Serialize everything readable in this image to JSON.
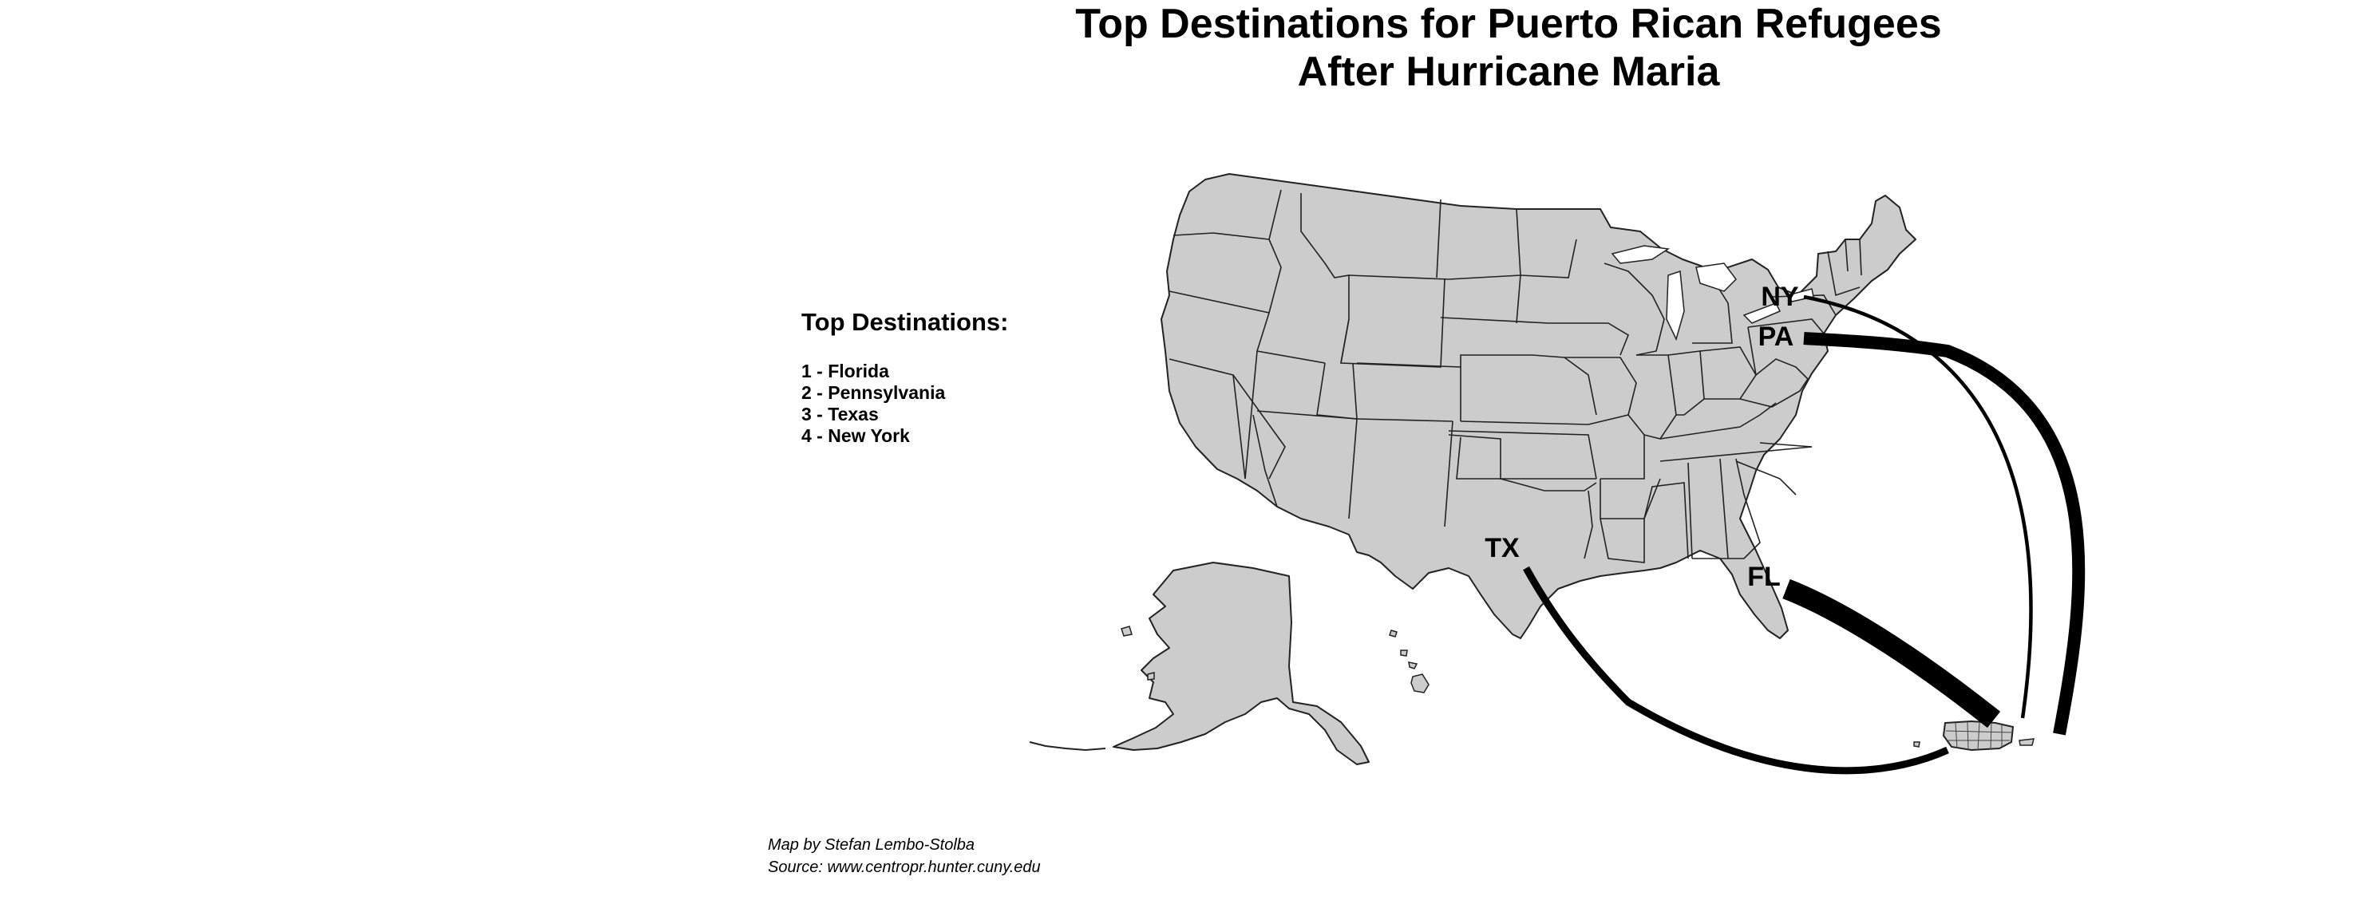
{
  "title": {
    "line1": "Top Destinations for Puerto Rican Refugees",
    "line2": "After Hurricane Maria"
  },
  "legend": {
    "heading": "Top Destinations:",
    "items": [
      "1 - Florida",
      "2 - Pennsylvania",
      "3 - Texas",
      "4 - New York"
    ]
  },
  "labels": {
    "ny": "NY",
    "pa": "PA",
    "tx": "TX",
    "fl": "FL"
  },
  "credits": {
    "author": "Map by Stefan Lembo-Stolba",
    "source": "Source: www.centropr.hunter.cuny.edu"
  },
  "colors": {
    "land": "#cccccc",
    "border": "#222222",
    "flow": "#000000"
  },
  "flows": [
    {
      "destination": "Florida",
      "rank": 1
    },
    {
      "destination": "Pennsylvania",
      "rank": 2
    },
    {
      "destination": "Texas",
      "rank": 3
    },
    {
      "destination": "New York",
      "rank": 4
    }
  ]
}
